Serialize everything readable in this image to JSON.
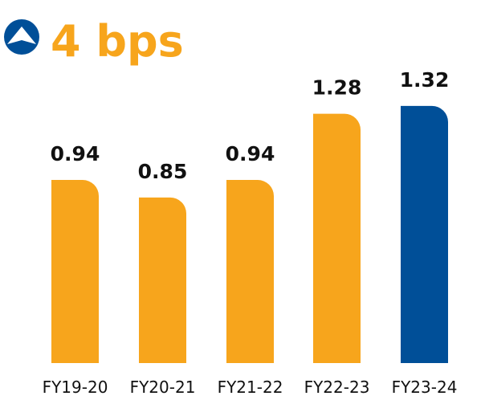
{
  "header": {
    "headline": "4 bps",
    "icon": "up-arrow-circle-icon"
  },
  "colors": {
    "accent": "#F7A51C",
    "highlight": "#004F98",
    "text": "#111111",
    "icon_bg": "#004F98"
  },
  "chart_data": {
    "type": "bar",
    "title": "4 bps",
    "categories": [
      "FY19-20",
      "FY20-21",
      "FY21-22",
      "FY22-23",
      "FY23-24"
    ],
    "values": [
      0.94,
      0.85,
      0.94,
      1.28,
      1.32
    ],
    "data_labels": [
      "0.94",
      "0.85",
      "0.94",
      "1.28",
      "1.32"
    ],
    "highlight_index": 4,
    "xlabel": "",
    "ylabel": "",
    "ylim": [
      0,
      1.32
    ],
    "grid": false,
    "legend": "none"
  }
}
